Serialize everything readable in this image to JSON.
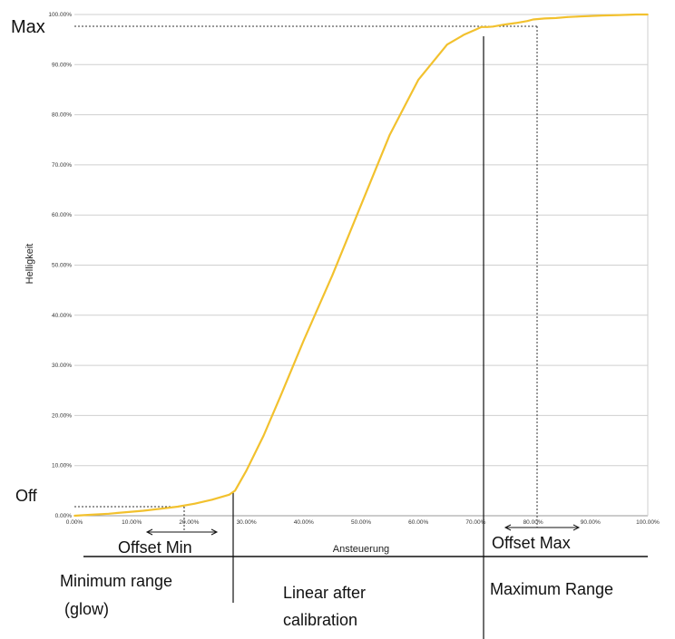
{
  "chart_data": {
    "type": "line",
    "xlabel": "Ansteuerung",
    "ylabel": "Helligkeit",
    "xlim": [
      0,
      100
    ],
    "ylim": [
      0,
      100
    ],
    "grid": "horizontal",
    "x_ticks": [
      "0.00%",
      "10.00%",
      "20.00%",
      "30.00%",
      "40.00%",
      "50.00%",
      "60.00%",
      "70.00%",
      "80.00%",
      "90.00%",
      "100.00%"
    ],
    "y_ticks": [
      "0.00%",
      "10.00%",
      "20.00%",
      "30.00%",
      "40.00%",
      "50.00%",
      "60.00%",
      "70.00%",
      "80.00%",
      "90.00%",
      "100.00%"
    ],
    "line_color": "#f2c12e",
    "series": [
      {
        "x": [
          0,
          3,
          6,
          9,
          12,
          15,
          18,
          21,
          24,
          27,
          28,
          30,
          33,
          36,
          40,
          45,
          50,
          55,
          60,
          65,
          68,
          70,
          71,
          72,
          73,
          75,
          77,
          78,
          79,
          80,
          82,
          84,
          86,
          88,
          90,
          92,
          95,
          98,
          100
        ],
        "y": [
          0,
          0.2,
          0.4,
          0.7,
          1,
          1.4,
          1.8,
          2.4,
          3.2,
          4.2,
          5,
          9,
          16,
          24,
          35,
          48,
          62,
          76,
          87,
          94,
          96,
          97,
          97.5,
          97.5,
          97.6,
          98,
          98.3,
          98.5,
          98.7,
          99,
          99.2,
          99.3,
          99.5,
          99.6,
          99.7,
          99.8,
          99.9,
          100,
          100
        ]
      }
    ]
  },
  "annotations": {
    "max": "Max",
    "off": "Off",
    "offset_min": "Offset Min",
    "offset_max": "Offset Max",
    "region_min_line1": "Minimum range",
    "region_min_line2": "(glow)",
    "region_linear_line1": "Linear after",
    "region_linear_line2": "calibration",
    "region_max": "Maximum Range"
  }
}
